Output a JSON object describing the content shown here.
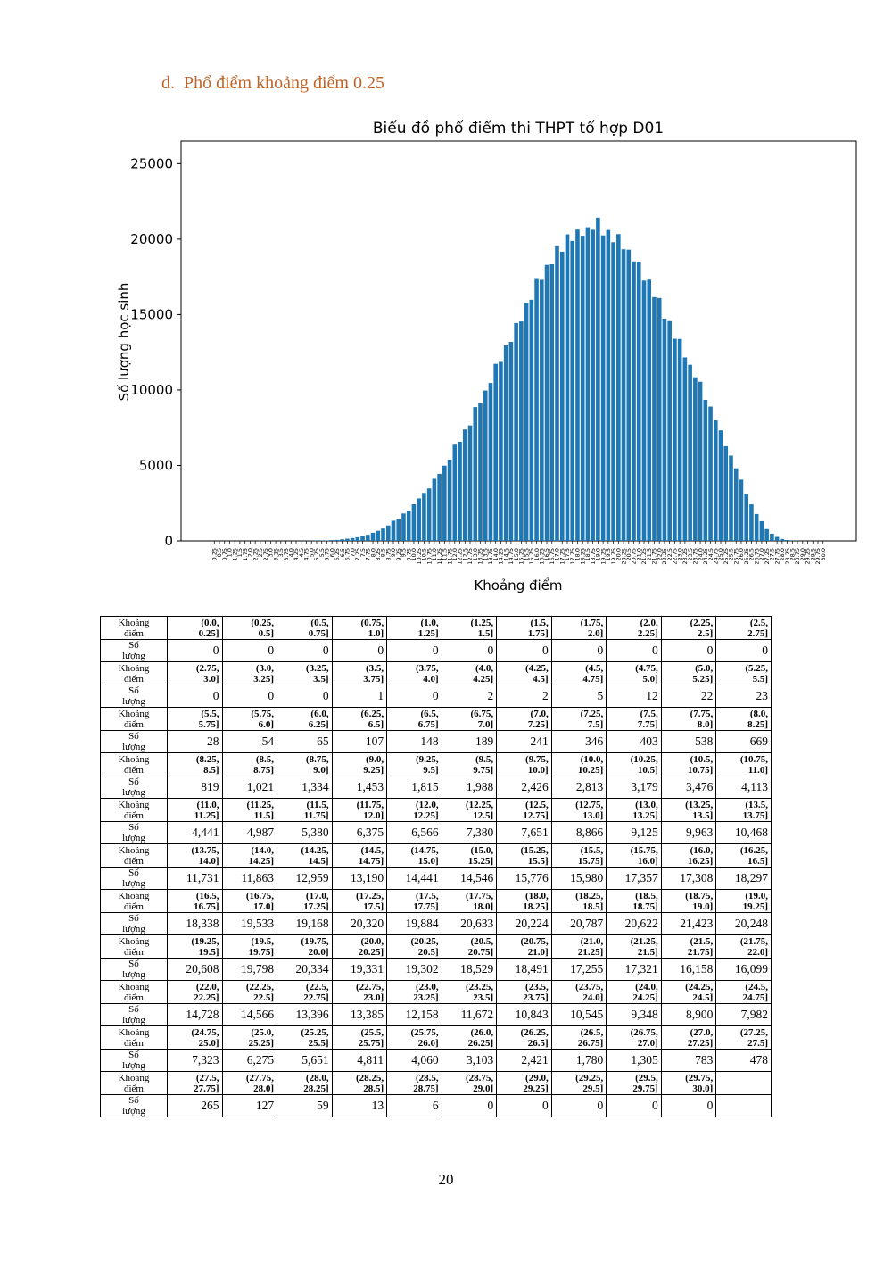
{
  "heading": {
    "marker": "d.",
    "text": "Phổ điểm khoảng điểm 0.25"
  },
  "chart_data": {
    "type": "bar",
    "title": "Biểu đồ phổ điểm thi THPT tổ hợp D01",
    "x_label": "Khoảng điểm",
    "y_label": "Số lượng học sinh",
    "color": "#1f77b4",
    "categories": [
      "0.25",
      "0.5",
      "0.75",
      "1.0",
      "1.25",
      "1.5",
      "1.75",
      "2.0",
      "2.25",
      "2.5",
      "2.75",
      "3.0",
      "3.25",
      "3.5",
      "3.75",
      "4.0",
      "4.25",
      "4.5",
      "4.75",
      "5.0",
      "5.25",
      "5.5",
      "5.75",
      "6.0",
      "6.25",
      "6.5",
      "6.75",
      "7.0",
      "7.25",
      "7.5",
      "7.75",
      "8.0",
      "8.25",
      "8.5",
      "8.75",
      "9.0",
      "9.25",
      "9.5",
      "9.75",
      "10.0",
      "10.25",
      "10.5",
      "10.75",
      "11.0",
      "11.25",
      "11.5",
      "11.75",
      "12.0",
      "12.25",
      "12.5",
      "12.75",
      "13.0",
      "13.25",
      "13.5",
      "13.75",
      "14.0",
      "14.25",
      "14.5",
      "14.75",
      "15.0",
      "15.25",
      "15.5",
      "15.75",
      "16.0",
      "16.25",
      "16.5",
      "16.75",
      "17.0",
      "17.25",
      "17.5",
      "17.75",
      "18.0",
      "18.25",
      "18.5",
      "18.75",
      "19.0",
      "19.25",
      "19.5",
      "19.75",
      "20.0",
      "20.25",
      "20.5",
      "20.75",
      "21.0",
      "21.25",
      "21.5",
      "21.75",
      "22.0",
      "22.25",
      "22.5",
      "22.75",
      "23.0",
      "23.25",
      "23.5",
      "23.75",
      "24.0",
      "24.25",
      "24.5",
      "24.75",
      "25.0",
      "25.25",
      "25.5",
      "25.75",
      "26.0",
      "26.25",
      "26.5",
      "26.75",
      "27.0",
      "27.25",
      "27.5",
      "27.75",
      "28.0",
      "28.25",
      "28.5",
      "28.75",
      "29.0",
      "29.25",
      "29.5",
      "29.75",
      "30.0"
    ],
    "values": [
      0,
      0,
      0,
      0,
      0,
      0,
      0,
      0,
      0,
      0,
      0,
      0,
      0,
      0,
      1,
      0,
      2,
      2,
      5,
      12,
      22,
      23,
      28,
      54,
      65,
      107,
      148,
      189,
      241,
      346,
      403,
      538,
      669,
      819,
      1021,
      1334,
      1453,
      1815,
      1988,
      2426,
      2813,
      3179,
      3476,
      4113,
      4441,
      4987,
      5380,
      6375,
      6566,
      7380,
      7651,
      8866,
      9125,
      9963,
      10468,
      11731,
      11863,
      12959,
      13190,
      14441,
      14546,
      15776,
      15980,
      17357,
      17308,
      18297,
      18338,
      19533,
      19168,
      20320,
      19884,
      20633,
      20224,
      20787,
      20622,
      21423,
      20248,
      20608,
      19798,
      20334,
      19331,
      19302,
      18529,
      18491,
      17255,
      17321,
      16158,
      16099,
      14728,
      14566,
      13396,
      13385,
      12158,
      11672,
      10843,
      10545,
      9348,
      8900,
      7982,
      7323,
      6275,
      5651,
      4811,
      4060,
      3103,
      2421,
      1780,
      1305,
      783,
      478,
      265,
      127,
      59,
      13,
      6,
      0,
      0,
      0,
      0,
      0
    ],
    "ylim": [
      0,
      26500
    ],
    "yticks": [
      0,
      5000,
      10000,
      15000,
      20000,
      25000
    ],
    "grid": false
  },
  "table": {
    "rows": [
      {
        "header": "Khoảng điểm",
        "cells": [
          "(0.0, 0.25]",
          "(0.25, 0.5]",
          "(0.5, 0.75]",
          "(0.75, 1.0]",
          "(1.0, 1.25]",
          "(1.25, 1.5]",
          "(1.5, 1.75]",
          "(1.75, 2.0]",
          "(2.0, 2.25]",
          "(2.25, 2.5]",
          "(2.5, 2.75]"
        ]
      },
      {
        "header": "Số lượng",
        "cells": [
          "0",
          "0",
          "0",
          "0",
          "0",
          "0",
          "0",
          "0",
          "0",
          "0",
          "0"
        ]
      },
      {
        "header": "Khoảng điểm",
        "cells": [
          "(2.75, 3.0]",
          "(3.0, 3.25]",
          "(3.25, 3.5]",
          "(3.5, 3.75]",
          "(3.75, 4.0]",
          "(4.0, 4.25]",
          "(4.25, 4.5]",
          "(4.5, 4.75]",
          "(4.75, 5.0]",
          "(5.0, 5.25]",
          "(5.25, 5.5]"
        ]
      },
      {
        "header": "Số lượng",
        "cells": [
          "0",
          "0",
          "0",
          "1",
          "0",
          "2",
          "2",
          "5",
          "12",
          "22",
          "23"
        ]
      },
      {
        "header": "Khoảng điểm",
        "cells": [
          "(5.5, 5.75]",
          "(5.75, 6.0]",
          "(6.0, 6.25]",
          "(6.25, 6.5]",
          "(6.5, 6.75]",
          "(6.75, 7.0]",
          "(7.0, 7.25]",
          "(7.25, 7.5]",
          "(7.5, 7.75]",
          "(7.75, 8.0]",
          "(8.0, 8.25]"
        ]
      },
      {
        "header": "Số lượng",
        "cells": [
          "28",
          "54",
          "65",
          "107",
          "148",
          "189",
          "241",
          "346",
          "403",
          "538",
          "669"
        ]
      },
      {
        "header": "Khoảng điểm",
        "cells": [
          "(8.25, 8.5]",
          "(8.5, 8.75]",
          "(8.75, 9.0]",
          "(9.0, 9.25]",
          "(9.25, 9.5]",
          "(9.5, 9.75]",
          "(9.75, 10.0]",
          "(10.0, 10.25]",
          "(10.25, 10.5]",
          "(10.5, 10.75]",
          "(10.75, 11.0]"
        ]
      },
      {
        "header": "Số lượng",
        "cells": [
          "819",
          "1,021",
          "1,334",
          "1,453",
          "1,815",
          "1,988",
          "2,426",
          "2,813",
          "3,179",
          "3,476",
          "4,113"
        ]
      },
      {
        "header": "Khoảng điểm",
        "cells": [
          "(11.0, 11.25]",
          "(11.25, 11.5]",
          "(11.5, 11.75]",
          "(11.75, 12.0]",
          "(12.0, 12.25]",
          "(12.25, 12.5]",
          "(12.5, 12.75]",
          "(12.75, 13.0]",
          "(13.0, 13.25]",
          "(13.25, 13.5]",
          "(13.5, 13.75]"
        ]
      },
      {
        "header": "Số lượng",
        "cells": [
          "4,441",
          "4,987",
          "5,380",
          "6,375",
          "6,566",
          "7,380",
          "7,651",
          "8,866",
          "9,125",
          "9,963",
          "10,468"
        ]
      },
      {
        "header": "Khoảng điểm",
        "cells": [
          "(13.75, 14.0]",
          "(14.0, 14.25]",
          "(14.25, 14.5]",
          "(14.5, 14.75]",
          "(14.75, 15.0]",
          "(15.0, 15.25]",
          "(15.25, 15.5]",
          "(15.5, 15.75]",
          "(15.75, 16.0]",
          "(16.0, 16.25]",
          "(16.25, 16.5]"
        ]
      },
      {
        "header": "Số lượng",
        "cells": [
          "11,731",
          "11,863",
          "12,959",
          "13,190",
          "14,441",
          "14,546",
          "15,776",
          "15,980",
          "17,357",
          "17,308",
          "18,297"
        ]
      },
      {
        "header": "Khoảng điểm",
        "cells": [
          "(16.5, 16.75]",
          "(16.75, 17.0]",
          "(17.0, 17.25]",
          "(17.25, 17.5]",
          "(17.5, 17.75]",
          "(17.75, 18.0]",
          "(18.0, 18.25]",
          "(18.25, 18.5]",
          "(18.5, 18.75]",
          "(18.75, 19.0]",
          "(19.0, 19.25]"
        ]
      },
      {
        "header": "Số lượng",
        "cells": [
          "18,338",
          "19,533",
          "19,168",
          "20,320",
          "19,884",
          "20,633",
          "20,224",
          "20,787",
          "20,622",
          "21,423",
          "20,248"
        ]
      },
      {
        "header": "Khoảng điểm",
        "cells": [
          "(19.25, 19.5]",
          "(19.5, 19.75]",
          "(19.75, 20.0]",
          "(20.0, 20.25]",
          "(20.25, 20.5]",
          "(20.5, 20.75]",
          "(20.75, 21.0]",
          "(21.0, 21.25]",
          "(21.25, 21.5]",
          "(21.5, 21.75]",
          "(21.75, 22.0]"
        ]
      },
      {
        "header": "Số lượng",
        "cells": [
          "20,608",
          "19,798",
          "20,334",
          "19,331",
          "19,302",
          "18,529",
          "18,491",
          "17,255",
          "17,321",
          "16,158",
          "16,099"
        ]
      },
      {
        "header": "Khoảng điểm",
        "cells": [
          "(22.0, 22.25]",
          "(22.25, 22.5]",
          "(22.5, 22.75]",
          "(22.75, 23.0]",
          "(23.0, 23.25]",
          "(23.25, 23.5]",
          "(23.5, 23.75]",
          "(23.75, 24.0]",
          "(24.0, 24.25]",
          "(24.25, 24.5]",
          "(24.5, 24.75]"
        ]
      },
      {
        "header": "Số lượng",
        "cells": [
          "14,728",
          "14,566",
          "13,396",
          "13,385",
          "12,158",
          "11,672",
          "10,843",
          "10,545",
          "9,348",
          "8,900",
          "7,982"
        ]
      },
      {
        "header": "Khoảng điểm",
        "cells": [
          "(24.75, 25.0]",
          "(25.0, 25.25]",
          "(25.25, 25.5]",
          "(25.5, 25.75]",
          "(25.75, 26.0]",
          "(26.0, 26.25]",
          "(26.25, 26.5]",
          "(26.5, 26.75]",
          "(26.75, 27.0]",
          "(27.0, 27.25]",
          "(27.25, 27.5]"
        ]
      },
      {
        "header": "Số lượng",
        "cells": [
          "7,323",
          "6,275",
          "5,651",
          "4,811",
          "4,060",
          "3,103",
          "2,421",
          "1,780",
          "1,305",
          "783",
          "478"
        ]
      },
      {
        "header": "Khoảng điểm",
        "cells": [
          "(27.5, 27.75]",
          "(27.75, 28.0]",
          "(28.0, 28.25]",
          "(28.25, 28.5]",
          "(28.5, 28.75]",
          "(28.75, 29.0]",
          "(29.0, 29.25]",
          "(29.25, 29.5]",
          "(29.5, 29.75]",
          "(29.75, 30.0]"
        ]
      },
      {
        "header": "Số lượng",
        "cells": [
          "265",
          "127",
          "59",
          "13",
          "6",
          "0",
          "0",
          "0",
          "0",
          "0"
        ]
      }
    ]
  },
  "page_number": "20"
}
